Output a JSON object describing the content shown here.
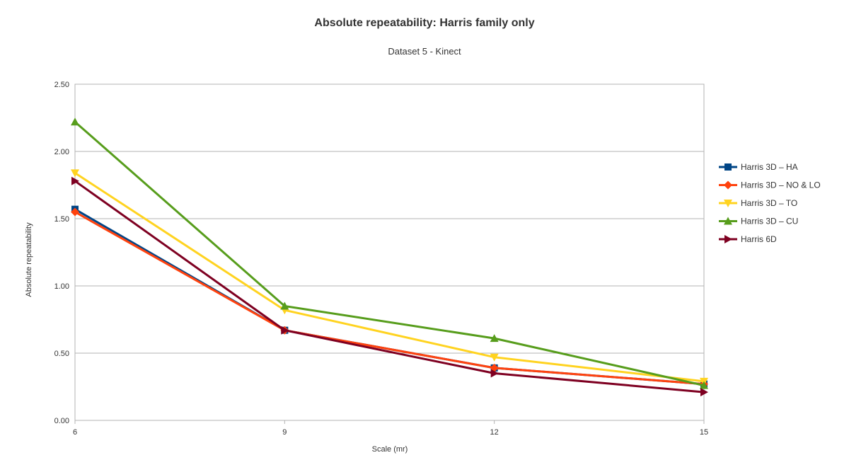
{
  "chart_data": {
    "type": "line",
    "title": "Absolute repeatability: Harris family only",
    "subtitle": "Dataset 5 - Kinect",
    "xlabel": "Scale (mr)",
    "ylabel": "Absolute repeatability",
    "x": [
      6,
      9,
      12,
      15
    ],
    "x_tick_labels": [
      "6",
      "9",
      "12",
      "15"
    ],
    "ylim": [
      0,
      2.5
    ],
    "y_ticks": [
      0,
      0.5,
      1.0,
      1.5,
      2.0,
      2.5
    ],
    "y_tick_labels": [
      "0.00",
      "0.50",
      "1.00",
      "1.50",
      "2.00",
      "2.50"
    ],
    "grid": "horizontal",
    "legend_position": "right",
    "series": [
      {
        "name": "Harris 3D – HA",
        "color": "#004586",
        "marker": "square",
        "values": [
          1.57,
          0.67,
          0.39,
          0.27
        ]
      },
      {
        "name": "Harris 3D – NO & LO",
        "color": "#ff420e",
        "marker": "diamond",
        "values": [
          1.55,
          0.67,
          0.39,
          0.27
        ]
      },
      {
        "name": "Harris 3D – TO",
        "color": "#ffd320",
        "marker": "triangle-down",
        "values": [
          1.84,
          0.82,
          0.47,
          0.29
        ]
      },
      {
        "name": "Harris 3D – CU",
        "color": "#579d1c",
        "marker": "triangle-up",
        "values": [
          2.22,
          0.85,
          0.61,
          0.26
        ]
      },
      {
        "name": "Harris 6D",
        "color": "#7e0021",
        "marker": "triangle-right",
        "values": [
          1.78,
          0.67,
          0.35,
          0.21
        ]
      }
    ]
  }
}
